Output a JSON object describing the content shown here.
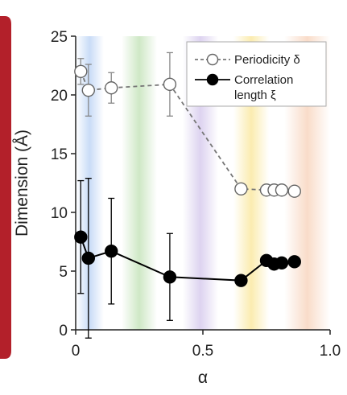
{
  "chart_data": {
    "type": "line",
    "xlabel": "α",
    "ylabel": "Dimension (Å)",
    "xlim": [
      0,
      1.0
    ],
    "ylim": [
      0,
      25
    ],
    "xticks": [
      "0",
      "0.5",
      "1.0"
    ],
    "xtick_values": [
      0,
      0.5,
      1.0
    ],
    "yticks": [
      "0",
      "5",
      "10",
      "15",
      "20",
      "25"
    ],
    "ytick_values": [
      0,
      5,
      10,
      15,
      20,
      25
    ],
    "grid": false,
    "legend_position": "top-right",
    "background_bands": [
      {
        "from": 0.0,
        "to": 0.11,
        "color": "#c9dcf7"
      },
      {
        "from": 0.18,
        "to": 0.32,
        "color": "#cfe8c6"
      },
      {
        "from": 0.42,
        "to": 0.56,
        "color": "#ddd3f0"
      },
      {
        "from": 0.62,
        "to": 0.76,
        "color": "#fbecb0"
      },
      {
        "from": 0.82,
        "to": 1.0,
        "color": "#f9dcc9"
      }
    ],
    "series": [
      {
        "name": "Periodicity δ",
        "marker": "open-circle",
        "line_style": "dashed",
        "color": "#777777",
        "points": [
          {
            "x": 0.02,
            "y": 22.0,
            "err": 1.1
          },
          {
            "x": 0.05,
            "y": 20.4,
            "err": 2.2
          },
          {
            "x": 0.14,
            "y": 20.6,
            "err": 1.3
          },
          {
            "x": 0.37,
            "y": 20.9,
            "err": 2.7
          },
          {
            "x": 0.65,
            "y": 12.0
          },
          {
            "x": 0.75,
            "y": 11.9
          },
          {
            "x": 0.78,
            "y": 11.9
          },
          {
            "x": 0.81,
            "y": 11.9
          },
          {
            "x": 0.86,
            "y": 11.8
          }
        ]
      },
      {
        "name": "Correlation length ξ",
        "marker": "filled-circle",
        "line_style": "solid",
        "color": "#000000",
        "points": [
          {
            "x": 0.02,
            "y": 7.9,
            "err": 4.8
          },
          {
            "x": 0.05,
            "y": 6.1,
            "err": 6.8
          },
          {
            "x": 0.14,
            "y": 6.7,
            "err": 4.5
          },
          {
            "x": 0.37,
            "y": 4.5,
            "err": 3.7
          },
          {
            "x": 0.65,
            "y": 4.2
          },
          {
            "x": 0.75,
            "y": 5.9
          },
          {
            "x": 0.78,
            "y": 5.6
          },
          {
            "x": 0.81,
            "y": 5.7
          },
          {
            "x": 0.86,
            "y": 5.8
          }
        ]
      }
    ],
    "legend": {
      "entries": [
        {
          "lines": [
            "Periodicity δ"
          ],
          "series": 0
        },
        {
          "lines": [
            "Correlation",
            "length ξ"
          ],
          "series": 1
        }
      ]
    }
  },
  "colors": {
    "frame_accent": "#b3202a",
    "axis": "#222222"
  }
}
